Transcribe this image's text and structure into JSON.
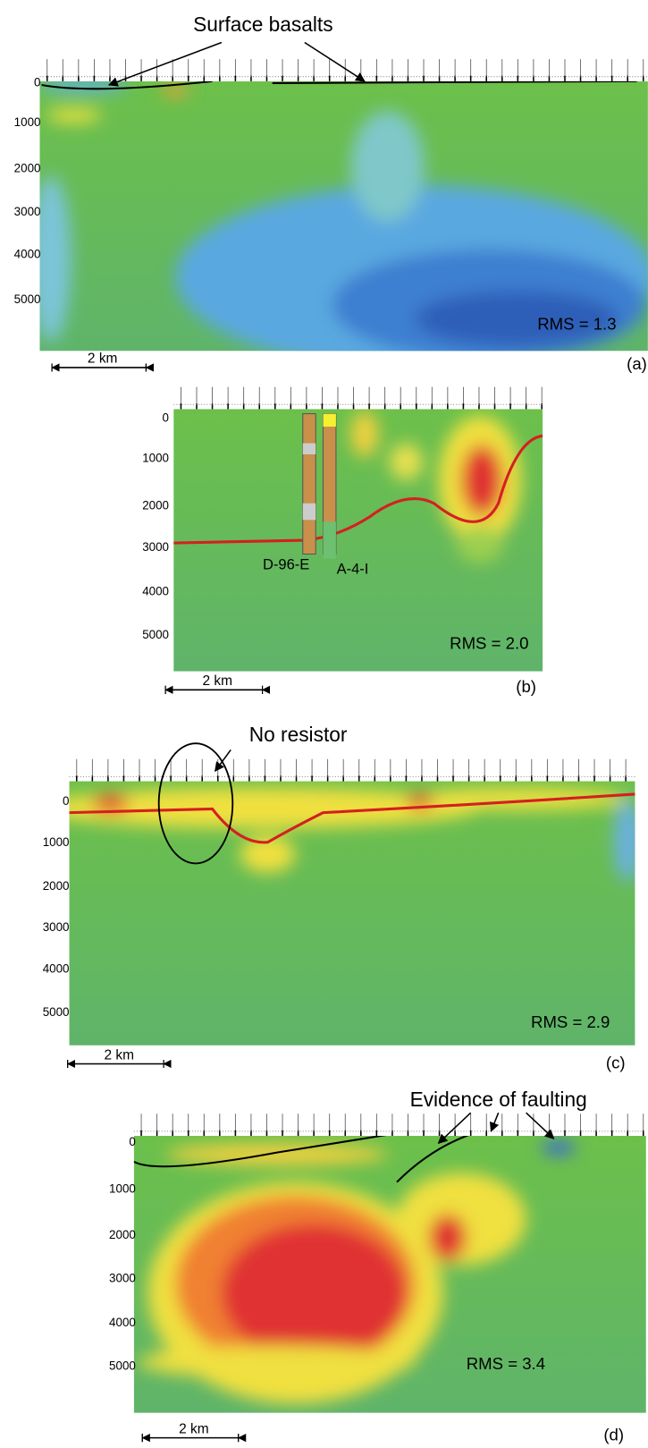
{
  "figure": {
    "panels": [
      {
        "label": "(a)",
        "depths": [
          0,
          1000,
          2000,
          3000,
          4000,
          5000
        ],
        "rms": "RMS = 1.3",
        "scale": "2 km",
        "annotation": "Surface basalts"
      },
      {
        "label": "(b)",
        "depths": [
          0,
          1000,
          2000,
          3000,
          4000,
          5000
        ],
        "rms": "RMS = 2.0",
        "scale": "2 km",
        "wells": [
          "D-96-E",
          "A-4-I"
        ]
      },
      {
        "label": "(c)",
        "depths": [
          0,
          1000,
          2000,
          3000,
          4000,
          5000
        ],
        "rms": "RMS = 2.9",
        "scale": "2 km",
        "annotation": "No resistor"
      },
      {
        "label": "(d)",
        "depths": [
          0,
          1000,
          2000,
          3000,
          4000,
          5000
        ],
        "rms": "RMS = 3.4",
        "scale": "2 km",
        "annotation": "Evidence of faulting"
      }
    ]
  }
}
